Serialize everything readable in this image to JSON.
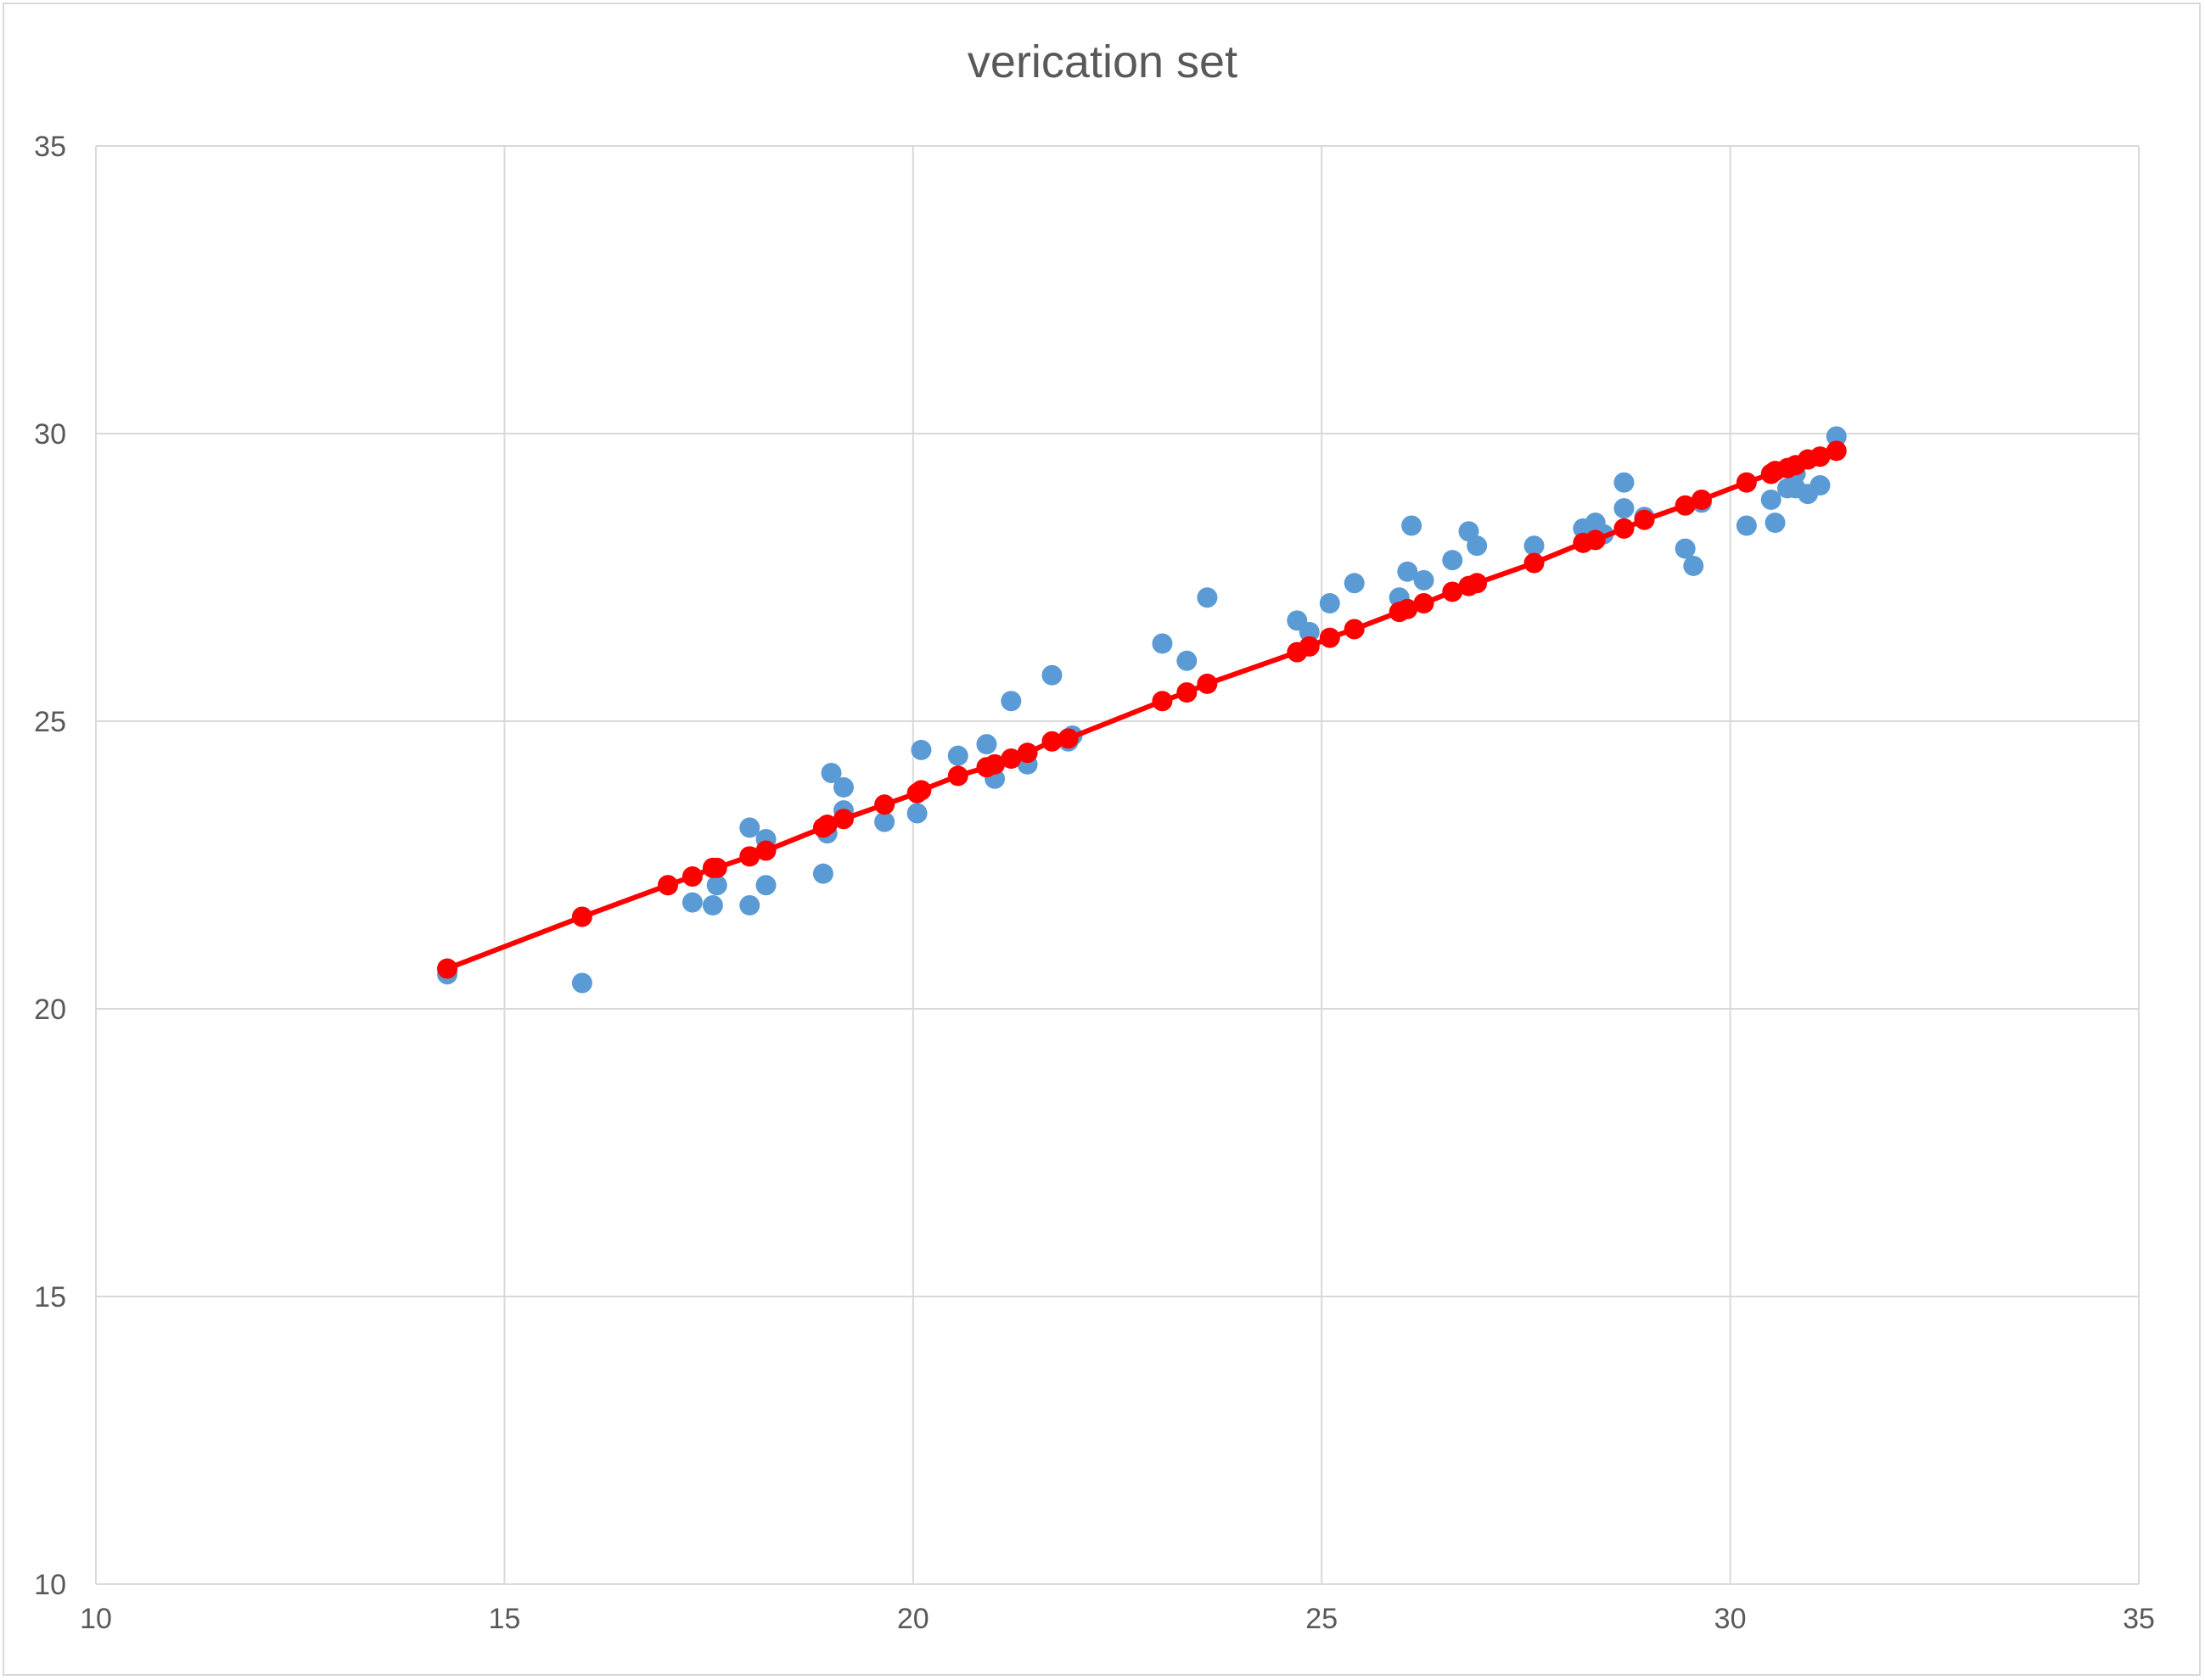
{
  "chart_data": {
    "type": "scatter",
    "title": "verication set",
    "xlabel": "",
    "ylabel": "",
    "xlim": [
      10,
      35
    ],
    "ylim": [
      10,
      35
    ],
    "x_ticks": [
      "10",
      "15",
      "20",
      "25",
      "30",
      "35"
    ],
    "y_ticks": [
      "10",
      "15",
      "20",
      "25",
      "30",
      "35"
    ],
    "grid": true,
    "legend": "none",
    "series": [
      {
        "style": "markers",
        "color": "#5b9bd5",
        "points": [
          [
            14.3,
            20.6
          ],
          [
            15.95,
            20.45
          ],
          [
            17.0,
            22.15
          ],
          [
            17.3,
            21.85
          ],
          [
            17.55,
            21.8
          ],
          [
            17.6,
            22.15
          ],
          [
            18.0,
            23.15
          ],
          [
            18.0,
            21.8
          ],
          [
            18.2,
            22.95
          ],
          [
            18.2,
            22.15
          ],
          [
            18.9,
            22.35
          ],
          [
            18.95,
            23.05
          ],
          [
            19.0,
            24.1
          ],
          [
            19.15,
            23.85
          ],
          [
            19.15,
            23.45
          ],
          [
            19.65,
            23.25
          ],
          [
            20.05,
            23.4
          ],
          [
            20.1,
            24.5
          ],
          [
            20.55,
            24.4
          ],
          [
            20.9,
            24.6
          ],
          [
            21.0,
            24.0
          ],
          [
            21.2,
            25.35
          ],
          [
            21.4,
            24.25
          ],
          [
            21.7,
            25.8
          ],
          [
            21.9,
            24.65
          ],
          [
            21.95,
            24.75
          ],
          [
            23.05,
            26.35
          ],
          [
            23.35,
            26.05
          ],
          [
            23.6,
            27.15
          ],
          [
            24.7,
            26.75
          ],
          [
            24.85,
            26.55
          ],
          [
            25.1,
            27.05
          ],
          [
            25.4,
            27.4
          ],
          [
            25.95,
            27.15
          ],
          [
            26.05,
            27.6
          ],
          [
            26.1,
            28.4
          ],
          [
            26.25,
            27.45
          ],
          [
            26.6,
            27.8
          ],
          [
            26.8,
            28.3
          ],
          [
            26.9,
            28.05
          ],
          [
            27.6,
            28.05
          ],
          [
            28.2,
            28.35
          ],
          [
            28.35,
            28.45
          ],
          [
            28.45,
            28.25
          ],
          [
            28.7,
            29.15
          ],
          [
            28.7,
            28.7
          ],
          [
            28.95,
            28.55
          ],
          [
            29.45,
            28.0
          ],
          [
            29.55,
            27.7
          ],
          [
            29.65,
            28.8
          ],
          [
            30.2,
            28.4
          ],
          [
            30.5,
            28.85
          ],
          [
            30.55,
            28.45
          ],
          [
            30.7,
            29.05
          ],
          [
            30.8,
            29.05
          ],
          [
            30.8,
            29.3
          ],
          [
            30.95,
            28.95
          ],
          [
            31.1,
            29.1
          ],
          [
            31.3,
            29.95
          ]
        ]
      },
      {
        "style": "line+markers",
        "color": "#ff0000",
        "points": [
          [
            14.3,
            20.7
          ],
          [
            15.95,
            21.6
          ],
          [
            17.0,
            22.15
          ],
          [
            17.3,
            22.3
          ],
          [
            17.55,
            22.45
          ],
          [
            17.6,
            22.45
          ],
          [
            18.0,
            22.65
          ],
          [
            18.2,
            22.75
          ],
          [
            18.9,
            23.15
          ],
          [
            18.95,
            23.2
          ],
          [
            19.15,
            23.3
          ],
          [
            19.65,
            23.55
          ],
          [
            20.05,
            23.75
          ],
          [
            20.1,
            23.8
          ],
          [
            20.55,
            24.05
          ],
          [
            20.9,
            24.2
          ],
          [
            21.0,
            24.25
          ],
          [
            21.2,
            24.35
          ],
          [
            21.4,
            24.45
          ],
          [
            21.7,
            24.65
          ],
          [
            21.9,
            24.7
          ],
          [
            23.05,
            25.35
          ],
          [
            23.35,
            25.5
          ],
          [
            23.6,
            25.65
          ],
          [
            24.7,
            26.2
          ],
          [
            24.85,
            26.3
          ],
          [
            25.1,
            26.45
          ],
          [
            25.4,
            26.6
          ],
          [
            25.95,
            26.9
          ],
          [
            26.05,
            26.95
          ],
          [
            26.25,
            27.05
          ],
          [
            26.6,
            27.25
          ],
          [
            26.8,
            27.35
          ],
          [
            26.9,
            27.4
          ],
          [
            27.6,
            27.75
          ],
          [
            28.2,
            28.1
          ],
          [
            28.35,
            28.15
          ],
          [
            28.7,
            28.35
          ],
          [
            28.95,
            28.5
          ],
          [
            29.45,
            28.75
          ],
          [
            29.65,
            28.85
          ],
          [
            30.2,
            29.15
          ],
          [
            30.5,
            29.3
          ],
          [
            30.55,
            29.35
          ],
          [
            30.7,
            29.4
          ],
          [
            30.8,
            29.45
          ],
          [
            30.95,
            29.55
          ],
          [
            31.1,
            29.6
          ],
          [
            31.3,
            29.7
          ]
        ]
      }
    ]
  }
}
